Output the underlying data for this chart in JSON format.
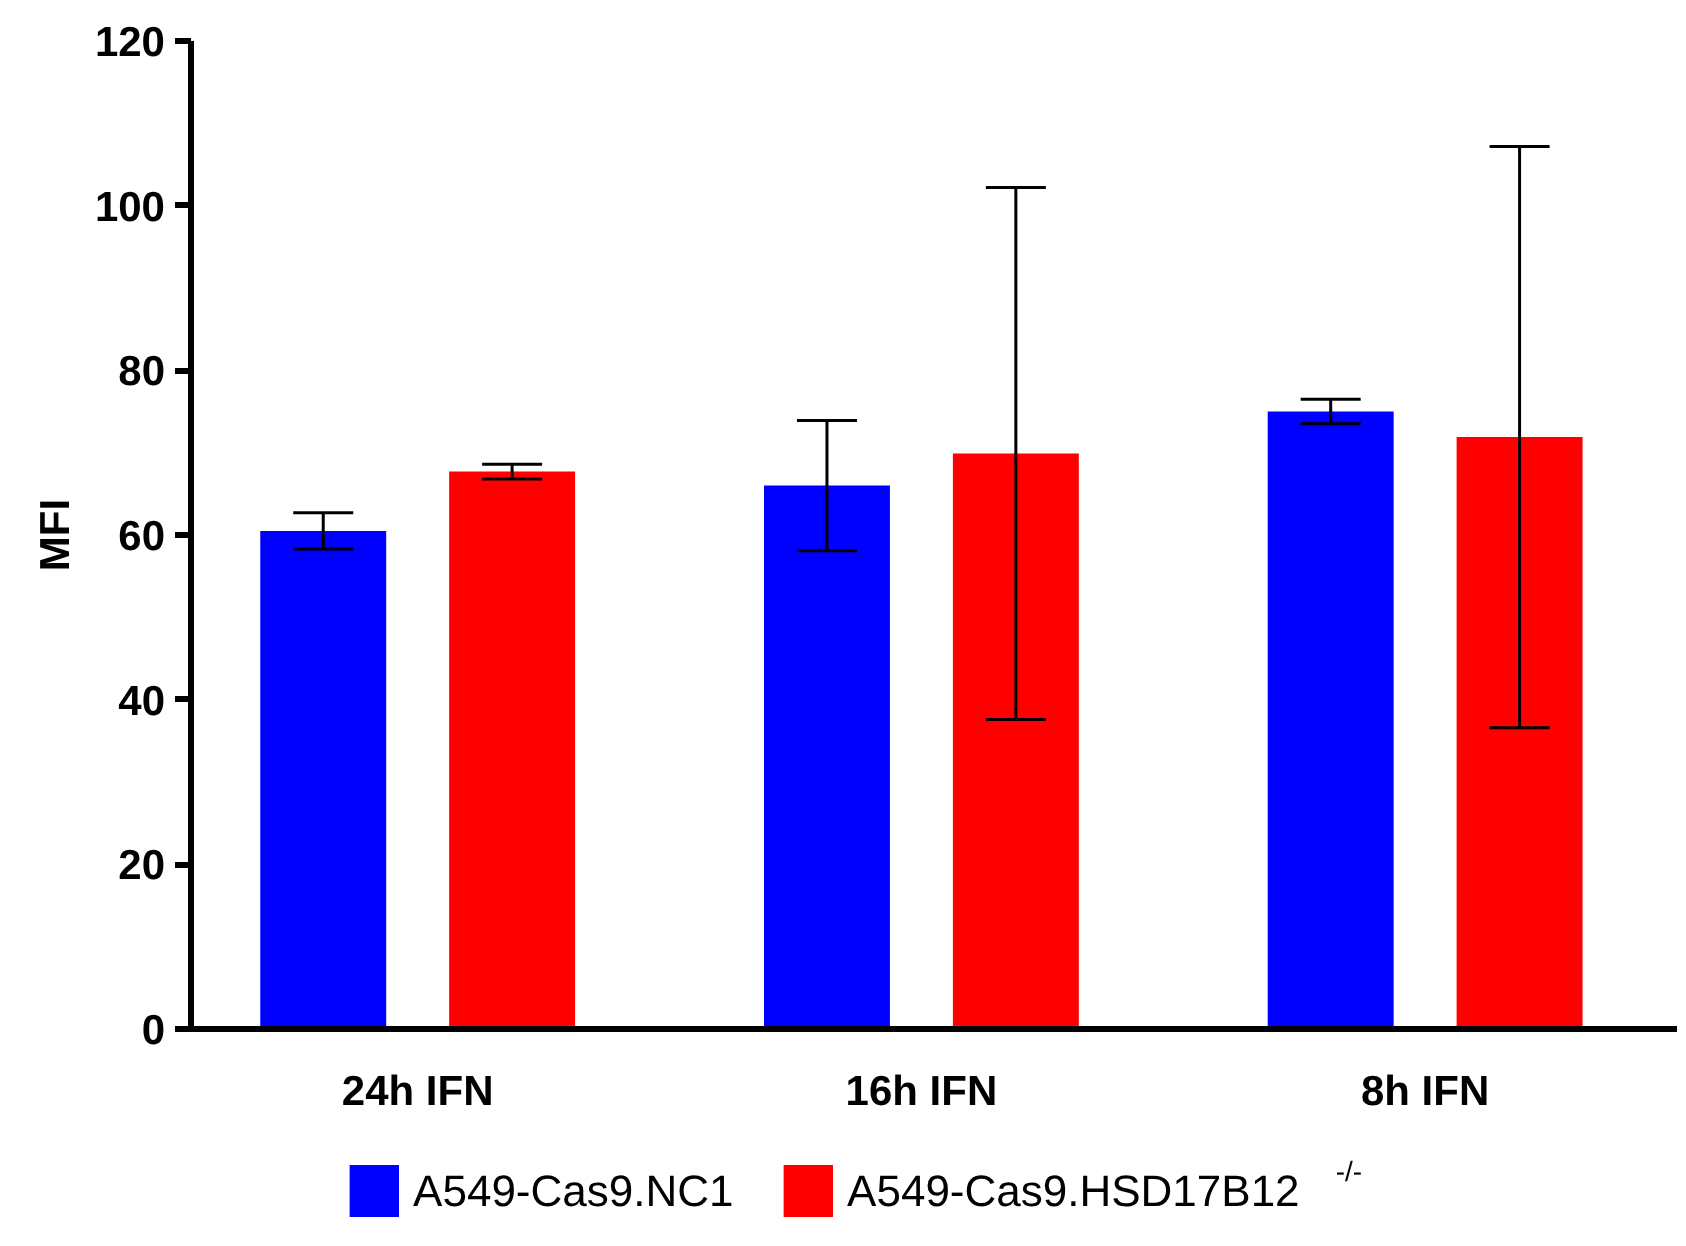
{
  "chart_data": {
    "type": "bar",
    "ylabel": "MFI",
    "categories": [
      "24h IFN",
      "16h IFN",
      "8h IFN"
    ],
    "series": [
      {
        "name": "A549-Cas9.NC1",
        "color": "#0000ff",
        "values": [
          60.5,
          66.0,
          75.0
        ],
        "errors": [
          2.2,
          7.9,
          1.5
        ]
      },
      {
        "name": "A549-Cas9.HSD17B12$^{-/-}$",
        "color": "#ff0000",
        "values": [
          67.7,
          69.9,
          71.9
        ],
        "errors": [
          0.9,
          32.3,
          35.3
        ]
      }
    ],
    "ylim": [
      0,
      120
    ],
    "yticks": [
      0,
      20,
      40,
      60,
      80,
      100,
      120
    ],
    "grid": false,
    "legend": "bottom"
  }
}
